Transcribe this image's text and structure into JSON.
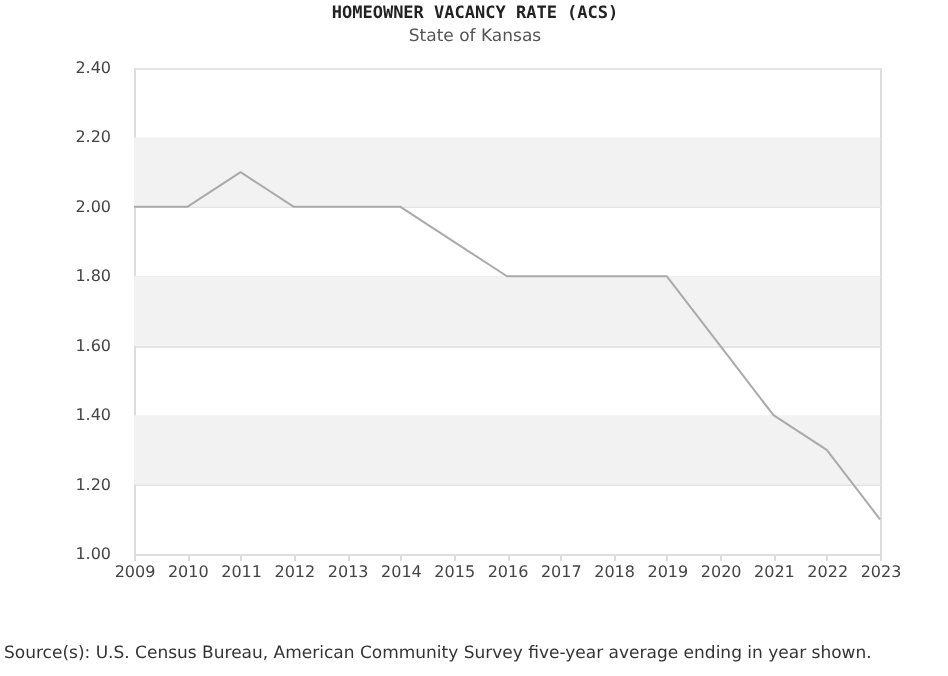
{
  "chart_data": {
    "type": "line",
    "title": "HOMEOWNER VACANCY RATE (ACS)",
    "subtitle": "State of Kansas",
    "x": [
      2009,
      2010,
      2011,
      2012,
      2013,
      2014,
      2015,
      2016,
      2017,
      2018,
      2019,
      2020,
      2021,
      2022,
      2023
    ],
    "series": [
      {
        "color": "#aaaaaa",
        "values": [
          2.0,
          2.0,
          2.1,
          2.0,
          2.0,
          2.0,
          1.9,
          1.8,
          1.8,
          1.8,
          1.8,
          1.6,
          1.4,
          1.3,
          1.1
        ]
      }
    ],
    "xlim": [
      2009,
      2023
    ],
    "xticks": [
      2009,
      2010,
      2011,
      2012,
      2013,
      2014,
      2015,
      2016,
      2017,
      2018,
      2019,
      2020,
      2021,
      2022,
      2023
    ],
    "ylim": [
      1.0,
      2.4
    ],
    "yticks": [
      {
        "value": 1.0,
        "label": "1.00"
      },
      {
        "value": 1.2,
        "label": "1.20"
      },
      {
        "value": 1.4,
        "label": "1.40"
      },
      {
        "value": 1.6,
        "label": "1.60"
      },
      {
        "value": 1.8,
        "label": "1.80"
      },
      {
        "value": 2.0,
        "label": "2.00"
      },
      {
        "value": 2.2,
        "label": "2.20"
      },
      {
        "value": 2.4,
        "label": "2.40"
      }
    ],
    "bands": [
      {
        "axis": "y",
        "from": 1.2,
        "to": 1.4,
        "color": "#f2f2f2"
      },
      {
        "axis": "y",
        "from": 1.6,
        "to": 1.8,
        "color": "#f2f2f2"
      },
      {
        "axis": "y",
        "from": 2.0,
        "to": 2.2,
        "color": "#f2f2f2"
      }
    ],
    "grid": "y",
    "marker": "none",
    "line_style": "solid",
    "annotations": [
      "Source(s): U.S. Census Bureau, American Community Survey five-year average ending in year shown."
    ]
  }
}
